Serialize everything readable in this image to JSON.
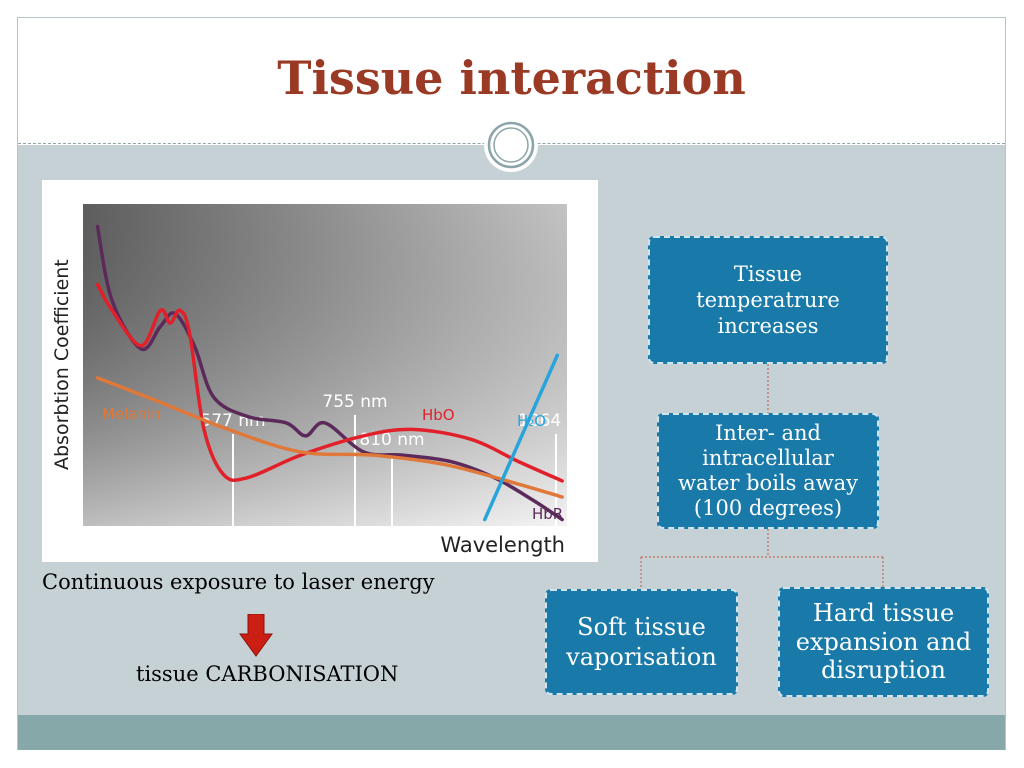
{
  "slide": {
    "title": "Tissue interaction"
  },
  "colors": {
    "title": "#9b3a24",
    "panel": "#c6d1d6",
    "footer": "#87a8a8",
    "box": "#1979a9",
    "arrow": "#cc1f14"
  },
  "captions": {
    "exposure": "Continuous exposure to laser energy",
    "result": "tissue CARBONISATION"
  },
  "arrow_icon": "down-arrow-icon",
  "flowchart": {
    "top": "Tissue temperatrure increases",
    "middle": "Inter- and intracellular water boils away (100 degrees)",
    "left": "Soft tissue vaporisation",
    "right": "Hard tissue expansion and disruption"
  },
  "chart_data": {
    "type": "line",
    "xlabel": "Wavelength",
    "ylabel": "Absorbtion Coefficient",
    "wavelength_markers": [
      "577 nm",
      "755 nm",
      "810 nm",
      "1064 nm"
    ],
    "series": [
      {
        "name": "HbR",
        "label": "HbR",
        "color": "#5b2a5a",
        "points": [
          [
            0.03,
            0.07
          ],
          [
            0.06,
            0.3
          ],
          [
            0.12,
            0.45
          ],
          [
            0.16,
            0.38
          ],
          [
            0.19,
            0.34
          ],
          [
            0.23,
            0.44
          ],
          [
            0.27,
            0.6
          ],
          [
            0.34,
            0.66
          ],
          [
            0.42,
            0.68
          ],
          [
            0.46,
            0.72
          ],
          [
            0.5,
            0.68
          ],
          [
            0.58,
            0.77
          ],
          [
            0.66,
            0.78
          ],
          [
            0.76,
            0.8
          ],
          [
            0.85,
            0.85
          ],
          [
            0.93,
            0.92
          ],
          [
            0.99,
            0.98
          ]
        ]
      },
      {
        "name": "HbO",
        "label": "HbO",
        "color": "#e2202a",
        "points": [
          [
            0.03,
            0.25
          ],
          [
            0.06,
            0.33
          ],
          [
            0.12,
            0.44
          ],
          [
            0.16,
            0.33
          ],
          [
            0.18,
            0.37
          ],
          [
            0.2,
            0.33
          ],
          [
            0.22,
            0.4
          ],
          [
            0.25,
            0.7
          ],
          [
            0.29,
            0.84
          ],
          [
            0.34,
            0.85
          ],
          [
            0.45,
            0.78
          ],
          [
            0.58,
            0.72
          ],
          [
            0.68,
            0.7
          ],
          [
            0.8,
            0.73
          ],
          [
            0.9,
            0.8
          ],
          [
            0.99,
            0.86
          ]
        ]
      },
      {
        "name": "Melanin",
        "label": "Melanin",
        "color": "#e0783a",
        "points": [
          [
            0.03,
            0.54
          ],
          [
            0.15,
            0.61
          ],
          [
            0.3,
            0.7
          ],
          [
            0.45,
            0.77
          ],
          [
            0.6,
            0.78
          ],
          [
            0.75,
            0.81
          ],
          [
            0.9,
            0.87
          ],
          [
            0.99,
            0.91
          ]
        ]
      },
      {
        "name": "H2O",
        "label": "H₂O",
        "color": "#27a4db",
        "points": [
          [
            0.83,
            0.98
          ],
          [
            0.98,
            0.47
          ]
        ]
      }
    ]
  }
}
